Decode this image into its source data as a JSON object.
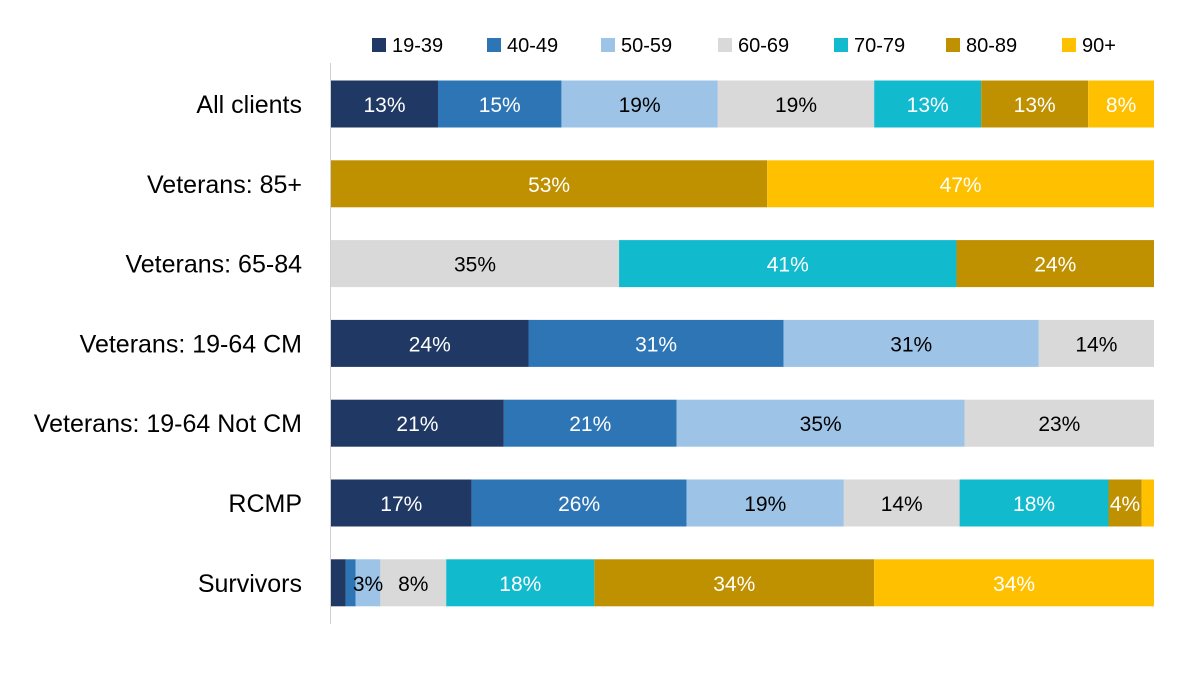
{
  "chart_data": {
    "type": "bar",
    "orientation": "horizontal",
    "stacked": true,
    "normalized": true,
    "title": "",
    "xlabel": "",
    "ylabel": "",
    "xlim": [
      0,
      100
    ],
    "grid": false,
    "legend_position": "top",
    "categories": [
      "All clients",
      "Veterans: 85+",
      "Veterans: 65-84",
      "Veterans: 19-64 CM",
      "Veterans: 19-64 Not CM",
      "RCMP",
      "Survivors"
    ],
    "series": [
      {
        "name": "19-39",
        "color": "#203864",
        "label_color": "#ffffff",
        "values": [
          13,
          0,
          0,
          24,
          21,
          17,
          1.8
        ],
        "labels": [
          "13%",
          "",
          "",
          "24%",
          "21%",
          "17%",
          ""
        ]
      },
      {
        "name": "40-49",
        "color": "#2E75B6",
        "label_color": "#ffffff",
        "values": [
          15,
          0,
          0,
          31,
          21,
          26,
          1.2
        ],
        "labels": [
          "15%",
          "",
          "",
          "31%",
          "21%",
          "26%",
          ""
        ]
      },
      {
        "name": "50-59",
        "color": "#9DC3E6",
        "label_color": "#000000",
        "values": [
          19,
          0,
          0,
          31,
          35,
          19,
          3
        ],
        "labels": [
          "19%",
          "",
          "",
          "31%",
          "35%",
          "19%",
          "3%"
        ]
      },
      {
        "name": "60-69",
        "color": "#D9D9D9",
        "label_color": "#000000",
        "values": [
          19,
          0,
          35,
          14,
          23,
          14,
          8
        ],
        "labels": [
          "19%",
          "",
          "35%",
          "14%",
          "23%",
          "14%",
          "8%"
        ]
      },
      {
        "name": "70-79",
        "color": "#12BACE",
        "label_color": "#ffffff",
        "values": [
          13,
          0,
          41,
          0,
          0,
          18,
          18
        ],
        "labels": [
          "13%",
          "",
          "41%",
          "",
          "",
          "18%",
          "18%"
        ]
      },
      {
        "name": "80-89",
        "color": "#BF9000",
        "label_color": "#ffffff",
        "values": [
          13,
          53,
          24,
          0,
          0,
          4,
          34
        ],
        "labels": [
          "13%",
          "53%",
          "24%",
          "",
          "",
          "4%",
          "34%"
        ]
      },
      {
        "name": "90+",
        "color": "#FFC000",
        "label_color": "#ffffff",
        "values": [
          8,
          47,
          0,
          0,
          0,
          1.5,
          34
        ],
        "labels": [
          "8%",
          "47%",
          "",
          "",
          "",
          "",
          "34%"
        ]
      }
    ]
  }
}
